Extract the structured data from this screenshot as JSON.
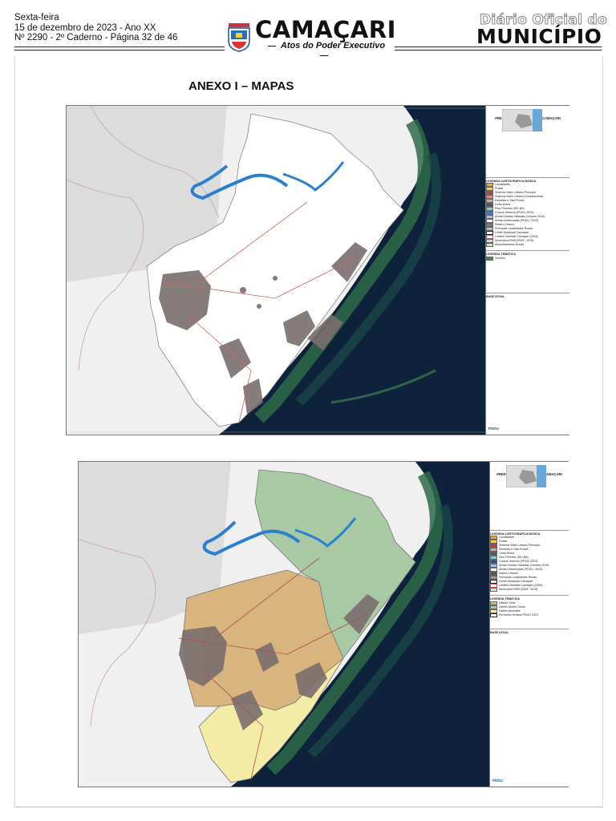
{
  "header": {
    "day": "Sexta-feira",
    "date_line": "15 de dezembro de 2023 - Ano XX",
    "issue_line": "Nº 2290 - 2º Caderno - Página 32 de 46",
    "brand": "CAMAÇARI",
    "brand_sub": "Atos do Poder Executivo",
    "diario": "Diário Oficial do",
    "municipio": "MUNICÍPIO"
  },
  "annex_title": "ANEXO I – MAPAS",
  "maps": [
    {
      "prefeitura": "PREFEITURA MUNICIPAL DE CAMAÇARI",
      "legend_basic_title": "LEGENDA CARTOGRÁFICA BÁSICA",
      "legend_basic": [
        "Localidades",
        "Praias",
        "Sistema Viário Urbano Principal",
        "Sistema Viário Urbano Complementar",
        "Estradas e Vias Rurais",
        "Linha férrea",
        "Rios Perenes (SEI-BA)",
        "Corpos Hídricos (PDDU 2023)",
        "Áreas Úmidas Variadas (Cenário 2016)",
        "Áreas Urbanizadas (PDDU, 2023)",
        "Núcleo Urbano",
        "Principais Localidades Rurais",
        "Limite Municipal Camaçari",
        "Limites Distritais Camaçari (2005)",
        "Municípios RMS (IBGE, 2015)",
        "Assentamentos Rurais"
      ],
      "legend_theme_title": "LEGENDA TEMÁTICA",
      "legend_theme": [
        "Vértices"
      ],
      "base": "BASE LEGAL",
      "logo": "PDDU"
    },
    {
      "prefeitura": "PREFEITURA MUNICIPAL DE CAMAÇARI",
      "legend_basic_title": "LEGENDA CARTOGRÁFICA BÁSICA",
      "legend_basic": [
        "Localidades",
        "Praias",
        "Sistema Viário Urbano Principal",
        "Estradas e Vias Rurais",
        "Linha férrea",
        "Rios Perenes (SEI-BA)",
        "Corpos Hídricos (PDDU 2023)",
        "Áreas Úmidas Variadas (Cenário 2016)",
        "Áreas Urbanizadas (PDDU, 2023)",
        "Núcleo Urbano",
        "Principais Localidades Rurais",
        "Limite Municipal Camaçari",
        "Limites Distritais Camaçari (2005)",
        "Municípios RMS (IBGE, 2015)"
      ],
      "legend_theme_title": "LEGENDA TEMÁTICA",
      "legend_theme": [
        "Distrito Sede",
        "Distrito Monte Gordo",
        "Distrito Abrantes",
        "Perímetro Urbano PDDU 2023"
      ],
      "base": "BASE LEGAL",
      "logo": "PDDU"
    }
  ],
  "colors": {
    "sea": "#0c1c33",
    "coast": "#2f6a4a",
    "water": "#2b7fd0",
    "urban": "#7a6e6e",
    "sede": "#d8b47e",
    "monte_gordo": "#a9c9a4",
    "abrantes": "#f4eca6"
  }
}
